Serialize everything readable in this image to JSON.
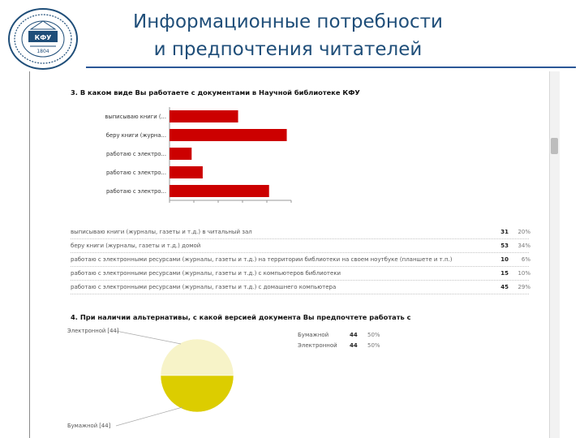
{
  "slide": {
    "title_lines": [
      "Информационные потребности",
      "и предпочтения читателей"
    ],
    "logo_text": "КФУ",
    "logo_year": "1804",
    "brand_color": "#1f4e79"
  },
  "q3": {
    "title": "3. В каком виде Вы работаете с документами в Научной библиотеке КФУ",
    "bar_color": "#cc0000",
    "table": [
      {
        "label": "выписываю книги (журналы, газеты и т.д.) в читальный зал",
        "count": "31",
        "pct": "20%"
      },
      {
        "label": "беру книги (журналы, газеты и т.д.) домой",
        "count": "53",
        "pct": "34%"
      },
      {
        "label": "работаю с электронными ресурсами (журналы, газеты и т.д.) на территории библиотеки на своем ноутбуке (планшете и т.п.)",
        "count": "10",
        "pct": "6%"
      },
      {
        "label": "работаю с электронными ресурсами (журналы, газеты и т.д.) с компьютеров библиотеки",
        "count": "15",
        "pct": "10%"
      },
      {
        "label": "работаю с электронными ресурсами (журналы, газеты и т.д.) с домашнего компьютера",
        "count": "45",
        "pct": "29%"
      }
    ]
  },
  "q4": {
    "title": "4. При наличии альтернативы, с какой версией документа Вы предпочтете работать с",
    "legend": [
      {
        "label": "Бумажной",
        "count": "44",
        "pct": "50%"
      },
      {
        "label": "Электронной",
        "count": "44",
        "pct": "50%"
      }
    ]
  },
  "chart_data": [
    {
      "type": "bar",
      "orientation": "horizontal",
      "title": "3. В каком виде Вы работаете с документами в Научной библиотеке КФУ",
      "categories": [
        "выписываю книги (...",
        "беру книги (журна...",
        "работаю с электро...",
        "работаю с электро...",
        "работаю с электро..."
      ],
      "values": [
        31,
        53,
        10,
        15,
        45
      ],
      "xticks": [
        0,
        11,
        22,
        33,
        44,
        55
      ],
      "xlim": [
        0,
        55
      ],
      "grid": false,
      "colors": [
        "#cc0000"
      ]
    },
    {
      "type": "pie",
      "title": "4. При наличии альтернативы, с какой версией документа Вы предпочтете работать с",
      "slices": [
        {
          "label": "Электронной [44]",
          "value": 44,
          "color": "#f7f3c8"
        },
        {
          "label": "Бумажной [44]",
          "value": 44,
          "color": "#dccd00"
        }
      ]
    }
  ]
}
